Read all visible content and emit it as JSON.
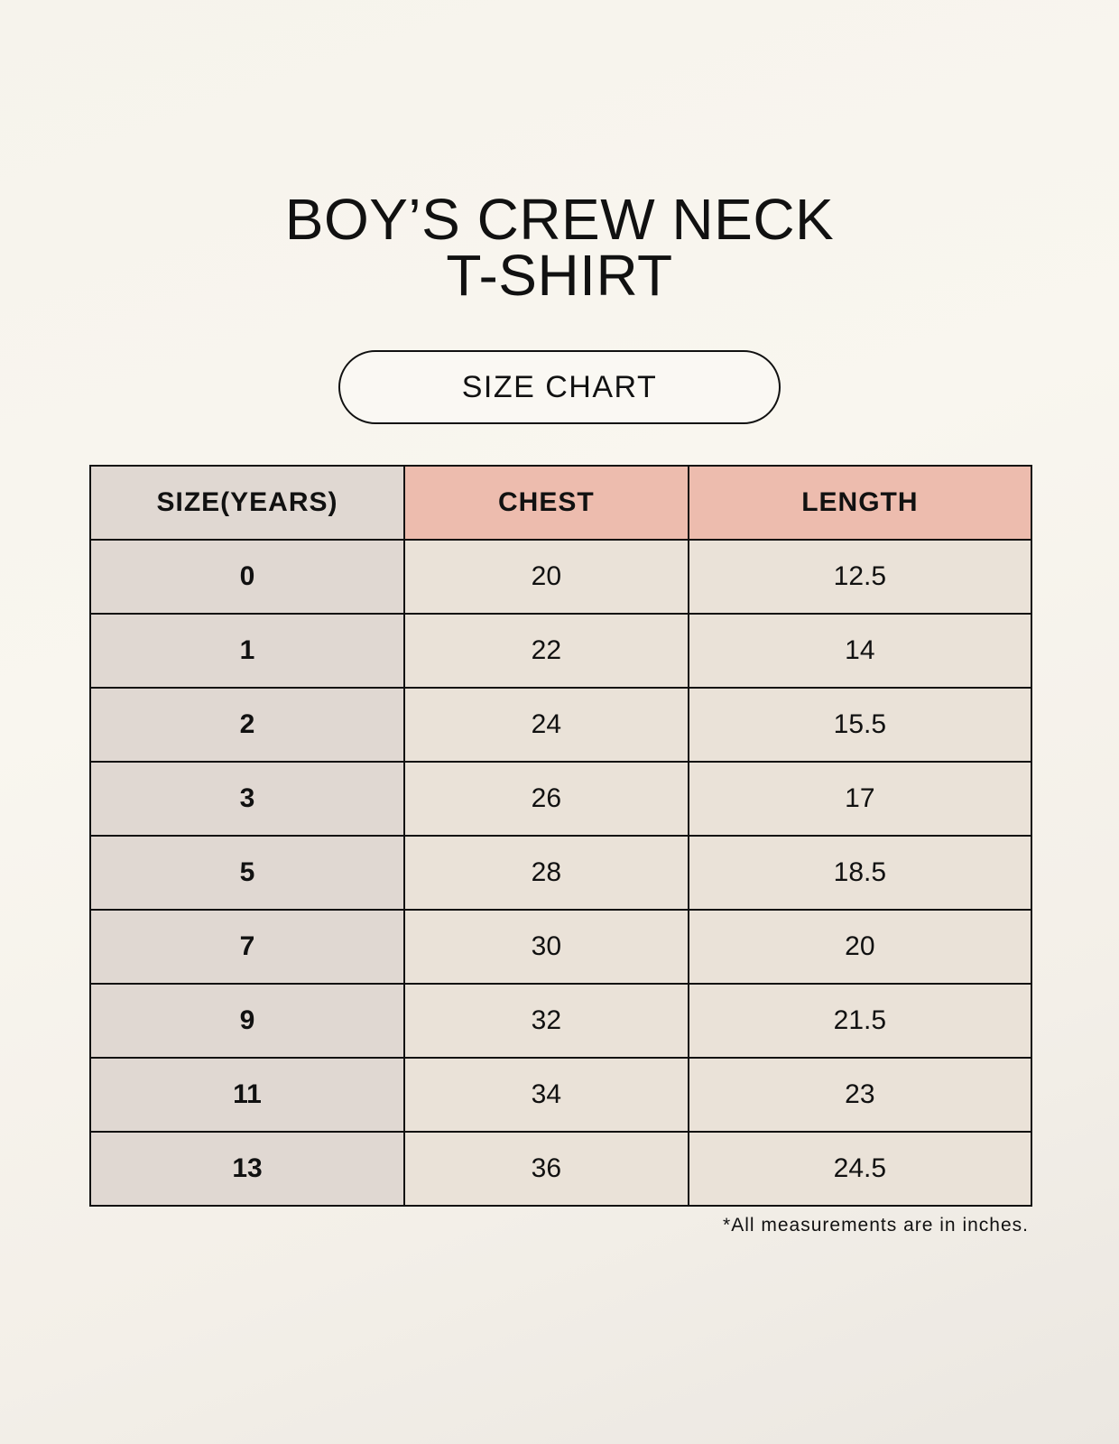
{
  "title": {
    "line1": "BOY’S CREW NECK",
    "line2": "T-SHIRT"
  },
  "badge": "SIZE CHART",
  "table": {
    "headers": [
      "SIZE(YEARS)",
      "CHEST",
      "LENGTH"
    ],
    "rows": [
      [
        "0",
        "20",
        "12.5"
      ],
      [
        "1",
        "22",
        "14"
      ],
      [
        "2",
        "24",
        "15.5"
      ],
      [
        "3",
        "26",
        "17"
      ],
      [
        "5",
        "28",
        "18.5"
      ],
      [
        "7",
        "30",
        "20"
      ],
      [
        "9",
        "32",
        "21.5"
      ],
      [
        "11",
        "34",
        "23"
      ],
      [
        "13",
        "36",
        "24.5"
      ]
    ]
  },
  "footnote": "*All measurements are in inches.",
  "colors": {
    "size_column": "#e0d8d2",
    "header_accent": "#edbcae",
    "cell": "#eae2d8"
  }
}
